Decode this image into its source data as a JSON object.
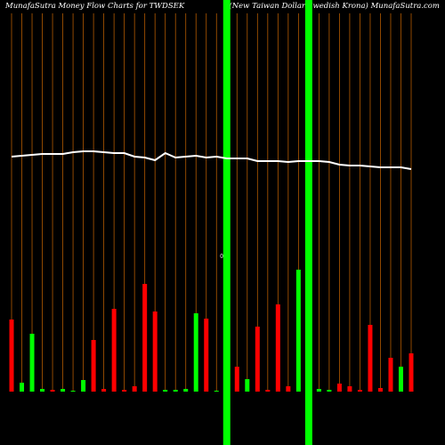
{
  "chart_data": {
    "type": "bar",
    "title": "MunafaSutra  Money  Flow  Charts for TWDSEK",
    "subtitle": "(New  Taiwan  Dollar  Swedish Krona) MunafaSutra.com",
    "zero_label": "0",
    "ylim": [
      0,
      440
    ],
    "values": [
      81,
      10,
      65,
      3,
      2,
      3,
      1,
      13,
      58,
      3,
      93,
      2,
      6,
      121,
      90,
      2,
      2,
      3,
      88,
      82,
      1,
      440,
      28,
      14,
      73,
      2,
      98,
      6,
      137,
      440,
      3,
      2,
      9,
      6,
      2,
      75,
      4,
      38,
      28,
      43
    ],
    "colors": [
      "#ff0000",
      "#00ff00",
      "#00ff00",
      "#00ff00",
      "#ff0000",
      "#00ff00",
      "#00ff00",
      "#00ff00",
      "#ff0000",
      "#ff0000",
      "#ff0000",
      "#ff0000",
      "#ff0000",
      "#ff0000",
      "#ff0000",
      "#00ff00",
      "#00ff00",
      "#00ff00",
      "#00ff00",
      "#ff0000",
      "#00ff00",
      "#00ff00",
      "#ff0000",
      "#00ff00",
      "#ff0000",
      "#ff0000",
      "#ff0000",
      "#ff0000",
      "#00ff00",
      "#00ff00",
      "#00ff00",
      "#00ff00",
      "#ff0000",
      "#ff0000",
      "#ff0000",
      "#ff0000",
      "#ff0000",
      "#ff0000",
      "#00ff00",
      "#ff0000"
    ],
    "line_ylim": [
      0,
      500
    ],
    "line_values": [
      324,
      325,
      326,
      327,
      327,
      327,
      329,
      330,
      330,
      329,
      328,
      328,
      324,
      323,
      320,
      328,
      323,
      324,
      325,
      323,
      324,
      322,
      322,
      322,
      319,
      319,
      319,
      318,
      319,
      319,
      319,
      318,
      315,
      314,
      314,
      313,
      312,
      312,
      312,
      310
    ],
    "line_color": "#ffffff",
    "gridline_color": "#b35a00"
  }
}
